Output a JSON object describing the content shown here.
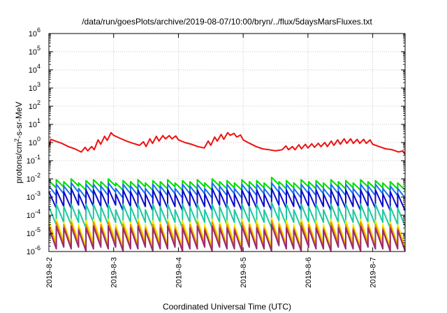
{
  "chart_data": {
    "type": "line",
    "title": "/data/run/goesPlots/archive/2019-08-07/10:00/bryn/../flux/5daysMarsFluxes.txt",
    "xlabel": "Coordinated Universal Time (UTC)",
    "ylabel": {
      "pre": "protons/cm",
      "sup": "2",
      "post": "-s-sr-MeV"
    },
    "x_unit": "days",
    "xlim": [
      "2019-8-2",
      "2019-8-7 12:00"
    ],
    "x_ticks": [
      "2019-8-2",
      "2019-8-3",
      "2019-8-4",
      "2019-8-5",
      "2019-8-6",
      "2019-8-7"
    ],
    "yscale": "log",
    "ylim": [
      1e-06,
      1000000.0
    ],
    "y_ticks": [
      {
        "base": "10",
        "exp": "-6"
      },
      {
        "base": "10",
        "exp": "-5"
      },
      {
        "base": "10",
        "exp": "-4"
      },
      {
        "base": "10",
        "exp": "-3"
      },
      {
        "base": "10",
        "exp": "-2"
      },
      {
        "base": "10",
        "exp": "-1"
      },
      {
        "base": "10",
        "exp": "0"
      },
      {
        "base": "10",
        "exp": "1"
      },
      {
        "base": "10",
        "exp": "2"
      },
      {
        "base": "10",
        "exp": "3"
      },
      {
        "base": "10",
        "exp": "4"
      },
      {
        "base": "10",
        "exp": "5"
      },
      {
        "base": "10",
        "exp": "6"
      }
    ],
    "grid": true,
    "series": [
      {
        "color": "#ee1111",
        "x": [
          "2019-8-2 00:00",
          "2019-8-2 00:43",
          "2019-8-2 02:24",
          "2019-8-2 04:48",
          "2019-8-2 07:12",
          "2019-8-2 09:36",
          "2019-8-2 12:00",
          "2019-8-2 13:26",
          "2019-8-2 14:24",
          "2019-8-2 15:50",
          "2019-8-2 16:48",
          "2019-8-2 18:14",
          "2019-8-2 19:12",
          "2019-8-2 20:38",
          "2019-8-2 21:36",
          "2019-8-2 23:02",
          "2019-8-3 00:00",
          "2019-8-3 02:24",
          "2019-8-3 04:48",
          "2019-8-3 07:12",
          "2019-8-3 09:36",
          "2019-8-3 11:02",
          "2019-8-3 12:00",
          "2019-8-3 13:26",
          "2019-8-3 14:24",
          "2019-8-3 15:50",
          "2019-8-3 16:48",
          "2019-8-3 18:14",
          "2019-8-3 19:12",
          "2019-8-3 20:38",
          "2019-8-3 21:36",
          "2019-8-3 23:02",
          "2019-8-4 00:00",
          "2019-8-4 02:24",
          "2019-8-4 04:48",
          "2019-8-4 07:12",
          "2019-8-4 09:36",
          "2019-8-4 11:02",
          "2019-8-4 12:00",
          "2019-8-4 13:26",
          "2019-8-4 14:24",
          "2019-8-4 15:50",
          "2019-8-4 16:48",
          "2019-8-4 18:14",
          "2019-8-4 19:12",
          "2019-8-4 20:38",
          "2019-8-4 21:36",
          "2019-8-4 23:02",
          "2019-8-5 00:00",
          "2019-8-5 02:24",
          "2019-8-5 04:48",
          "2019-8-5 07:12",
          "2019-8-5 09:36",
          "2019-8-5 12:00",
          "2019-8-5 14:24",
          "2019-8-5 15:50",
          "2019-8-5 16:48",
          "2019-8-5 18:14",
          "2019-8-5 19:12",
          "2019-8-5 20:38",
          "2019-8-5 21:36",
          "2019-8-5 23:02",
          "2019-8-6 00:00",
          "2019-8-6 01:26",
          "2019-8-6 02:24",
          "2019-8-6 03:50",
          "2019-8-6 04:48",
          "2019-8-6 06:14",
          "2019-8-6 07:12",
          "2019-8-6 08:38",
          "2019-8-6 09:36",
          "2019-8-6 11:02",
          "2019-8-6 12:00",
          "2019-8-6 13:26",
          "2019-8-6 14:24",
          "2019-8-6 15:50",
          "2019-8-6 16:48",
          "2019-8-6 18:14",
          "2019-8-6 19:12",
          "2019-8-6 20:38",
          "2019-8-6 21:36",
          "2019-8-6 23:02",
          "2019-8-7 00:00",
          "2019-8-7 02:24",
          "2019-8-7 04:48",
          "2019-8-7 07:12",
          "2019-8-7 09:36",
          "2019-8-7 11:02",
          "2019-8-7 12:00"
        ],
        "y": [
          0.6,
          1.5,
          1.2,
          0.9,
          0.6,
          0.45,
          0.3,
          0.55,
          0.35,
          0.6,
          0.4,
          1.4,
          0.8,
          2.2,
          1.3,
          3.5,
          2.5,
          1.7,
          1.2,
          0.9,
          0.7,
          1.1,
          0.6,
          1.6,
          0.9,
          2.2,
          1.2,
          2.4,
          1.6,
          2.4,
          1.6,
          2.3,
          1.4,
          1.0,
          0.8,
          0.6,
          0.5,
          1.2,
          0.7,
          2.0,
          1.2,
          2.8,
          1.5,
          3.5,
          2.5,
          3.2,
          2.0,
          2.6,
          1.4,
          0.9,
          0.6,
          0.45,
          0.4,
          0.35,
          0.4,
          0.65,
          0.4,
          0.6,
          0.4,
          0.75,
          0.45,
          0.8,
          0.5,
          0.85,
          0.55,
          0.9,
          0.6,
          1.0,
          0.6,
          1.2,
          0.7,
          1.4,
          0.8,
          1.6,
          0.9,
          1.6,
          0.9,
          1.5,
          0.9,
          1.5,
          0.9,
          1.4,
          0.8,
          0.6,
          0.45,
          0.4,
          0.3,
          0.35,
          0.22
        ]
      },
      {
        "color": "#00dd00",
        "peaks": [
          0.008,
          0.009,
          0.007,
          0.01,
          0.006,
          0.008,
          0.009,
          0.007,
          0.01,
          0.006,
          0.008,
          0.007,
          0.009,
          0.006,
          0.008,
          0.007,
          0.009,
          0.006,
          0.008,
          0.007,
          0.009,
          0.006,
          0.01,
          0.007,
          0.008,
          0.006,
          0.009,
          0.007,
          0.008,
          0.006,
          0.012,
          0.007,
          0.008,
          0.006,
          0.009,
          0.007,
          0.008,
          0.006,
          0.009,
          0.007,
          0.008,
          0.006,
          0.009,
          0.007,
          0.008,
          0.006,
          0.007,
          0.006
        ],
        "ratio": 0.4
      },
      {
        "color": "#1a70ee",
        "peaks": [
          0.004,
          0.005,
          0.004,
          0.006,
          0.003,
          0.005,
          0.005,
          0.004,
          0.006,
          0.003,
          0.005,
          0.004,
          0.005,
          0.003,
          0.005,
          0.004,
          0.005,
          0.003,
          0.005,
          0.004,
          0.005,
          0.003,
          0.006,
          0.004,
          0.005,
          0.003,
          0.005,
          0.004,
          0.005,
          0.003,
          0.006,
          0.004,
          0.005,
          0.003,
          0.005,
          0.004,
          0.005,
          0.003,
          0.005,
          0.004,
          0.005,
          0.003,
          0.005,
          0.004,
          0.005,
          0.003,
          0.004,
          0.003
        ],
        "ratio": 0.3
      },
      {
        "color": "#0a0acc",
        "peaks": [
          0.002,
          0.0025,
          0.002,
          0.003,
          0.0015,
          0.0025,
          0.0025,
          0.002,
          0.003,
          0.0015,
          0.0025,
          0.002,
          0.0025,
          0.0015,
          0.0025,
          0.002,
          0.0025,
          0.0015,
          0.0025,
          0.002,
          0.0025,
          0.0015,
          0.003,
          0.002,
          0.0025,
          0.0015,
          0.0025,
          0.002,
          0.0025,
          0.0015,
          0.003,
          0.002,
          0.0025,
          0.0015,
          0.0025,
          0.002,
          0.0025,
          0.0015,
          0.0025,
          0.002,
          0.0025,
          0.0015,
          0.0025,
          0.002,
          0.0025,
          0.0015,
          0.002,
          0.0015
        ],
        "ratio": 0.12
      },
      {
        "color": "#1ec8a0",
        "peaks": [
          0.0003,
          0.0004,
          0.0003,
          0.0004,
          0.0002,
          0.0004,
          0.0004,
          0.0003,
          0.0004,
          0.0002,
          0.0004,
          0.0003,
          0.0004,
          0.0002,
          0.0004,
          0.0003,
          0.0004,
          0.0002,
          0.0004,
          0.0003,
          0.0004,
          0.0002,
          0.0004,
          0.0003,
          0.0004,
          0.0002,
          0.0004,
          0.0003,
          0.0004,
          0.0002,
          0.0005,
          0.0003,
          0.0004,
          0.0002,
          0.0004,
          0.0003,
          0.0004,
          0.0002,
          0.0004,
          0.0003,
          0.0004,
          0.0002,
          0.0004,
          0.0003,
          0.0004,
          0.0002,
          0.0003,
          0.00025
        ],
        "ratio": 0.1
      },
      {
        "color": "#eeee00",
        "peaks": [
          5e-05,
          6e-05,
          4e-05,
          6e-05,
          3e-05,
          5e-05,
          6e-05,
          4e-05,
          6e-05,
          3e-05,
          5e-05,
          4e-05,
          6e-05,
          3e-05,
          5e-05,
          4e-05,
          6e-05,
          3e-05,
          5e-05,
          4e-05,
          6e-05,
          3e-05,
          6e-05,
          4e-05,
          5e-05,
          3e-05,
          6e-05,
          4e-05,
          5e-05,
          3e-05,
          7e-05,
          4e-05,
          5e-05,
          3e-05,
          6e-05,
          4e-05,
          5e-05,
          3e-05,
          6e-05,
          4e-05,
          5e-05,
          3e-05,
          6e-05,
          4e-05,
          5e-05,
          3e-05,
          4e-05,
          3e-05
        ],
        "ratio": 0.06
      },
      {
        "color": "#ee8800",
        "peaks": [
          3e-05,
          4e-05,
          3e-05,
          4e-05,
          2e-05,
          3e-05,
          4e-05,
          3e-05,
          4e-05,
          2e-05,
          3e-05,
          3e-05,
          4e-05,
          2e-05,
          3e-05,
          3e-05,
          4e-05,
          2e-05,
          3e-05,
          3e-05,
          4e-05,
          2e-05,
          4e-05,
          3e-05,
          3e-05,
          2e-05,
          4e-05,
          3e-05,
          3e-05,
          2e-05,
          5e-05,
          3e-05,
          3e-05,
          2e-05,
          4e-05,
          3e-05,
          3e-05,
          2e-05,
          4e-05,
          3e-05,
          3e-05,
          2e-05,
          4e-05,
          3e-05,
          3e-05,
          2e-05,
          3e-05,
          2e-05
        ],
        "ratio": 0.06
      },
      {
        "color": "#9b2a6e",
        "peaks": [
          2e-05,
          2.5e-05,
          2e-05,
          2.5e-05,
          1.5e-05,
          2e-05,
          2.5e-05,
          2e-05,
          2.5e-05,
          1.5e-05,
          2e-05,
          2e-05,
          2.5e-05,
          1.5e-05,
          2e-05,
          2e-05,
          2.5e-05,
          1.5e-05,
          2e-05,
          2e-05,
          2.5e-05,
          1.5e-05,
          2.5e-05,
          2e-05,
          2e-05,
          1.5e-05,
          2.5e-05,
          2e-05,
          2e-05,
          1.5e-05,
          3e-05,
          2e-05,
          2e-05,
          1.5e-05,
          2.5e-05,
          2e-05,
          2e-05,
          1.5e-05,
          2.5e-05,
          2e-05,
          2e-05,
          1.5e-05,
          2.5e-05,
          2e-05,
          2e-05,
          1.5e-05,
          2e-05,
          1.5e-05
        ],
        "ratio": 0.07
      }
    ]
  }
}
